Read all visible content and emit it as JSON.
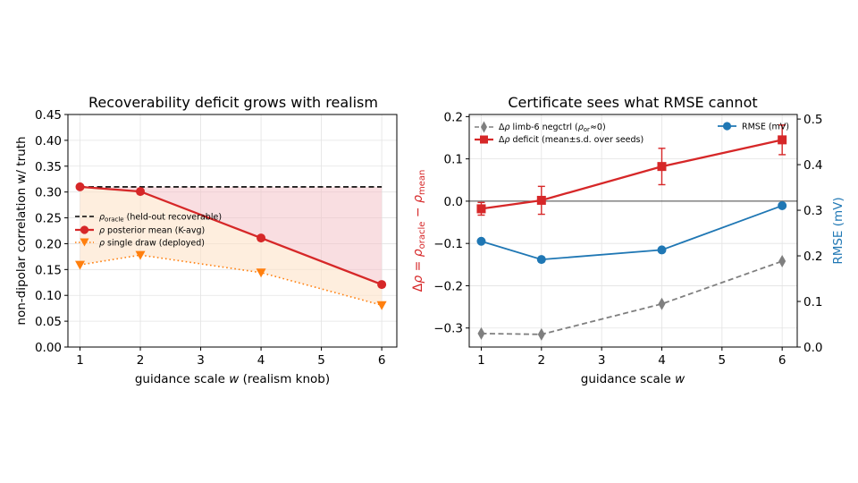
{
  "chart_data": [
    {
      "type": "line",
      "title": "Recoverability deficit grows with realism",
      "xlabel": "guidance scale w (realism knob)",
      "ylabel": "non-dipolar correlation w/ truth",
      "xlim": [
        0.8,
        6.25
      ],
      "ylim": [
        0.0,
        0.45
      ],
      "x_ticks": [
        1,
        2,
        3,
        4,
        5,
        6
      ],
      "y_ticks": [
        0.0,
        0.05,
        0.1,
        0.15,
        0.2,
        0.25,
        0.3,
        0.35,
        0.4,
        0.45
      ],
      "y_tick_labels": [
        "0.00",
        "0.05",
        "0.10",
        "0.15",
        "0.20",
        "0.25",
        "0.30",
        "0.35",
        "0.40",
        "0.45"
      ],
      "grid": true,
      "legend_position": "lower-left",
      "oracle_value": 0.31,
      "series": [
        {
          "name": "ρoracle (held-out recoverable)",
          "style": "dashed",
          "color": "#000000",
          "marker": "none",
          "x": [
            1,
            6
          ],
          "y": [
            0.31,
            0.31
          ]
        },
        {
          "name": "ρ posterior mean (K-avg)",
          "style": "solid",
          "color": "#d62728",
          "marker": "circle",
          "x": [
            1,
            2,
            4,
            6
          ],
          "y": [
            0.31,
            0.301,
            0.211,
            0.121
          ]
        },
        {
          "name": "ρ single draw (deployed)",
          "style": "dotted",
          "color": "#ff7f0e",
          "marker": "triangle-down",
          "x": [
            1,
            2,
            4,
            6
          ],
          "y": [
            0.159,
            0.178,
            0.144,
            0.081
          ]
        }
      ],
      "fills": [
        {
          "between": [
            "ρoracle (held-out recoverable)",
            "ρ posterior mean (K-avg)"
          ],
          "color": "#f4c2c8"
        },
        {
          "between": [
            "ρ posterior mean (K-avg)",
            "ρ single draw (deployed)"
          ],
          "color": "#fde2c8"
        }
      ]
    },
    {
      "type": "line",
      "title": "Certificate sees what RMSE cannot",
      "xlabel": "guidance scale w",
      "ylabel": "Δρ = ρoracle − ρmean",
      "ylabel_right": "RMSE (mV)",
      "xlim": [
        0.8,
        6.25
      ],
      "ylim": [
        -0.345,
        0.205
      ],
      "ylim_right": [
        0.0,
        0.51
      ],
      "x_ticks": [
        1,
        2,
        3,
        4,
        5,
        6
      ],
      "y_ticks": [
        0.2,
        0.1,
        0.0,
        -0.1,
        -0.2,
        -0.3
      ],
      "y_tick_labels": [
        "0.2",
        "0.1",
        "0.0",
        "−0.1",
        "−0.2",
        "−0.3"
      ],
      "y_ticks_right": [
        0.0,
        0.1,
        0.2,
        0.3,
        0.4,
        0.5
      ],
      "y_tick_labels_right": [
        "0.0",
        "0.1",
        "0.2",
        "0.3",
        "0.4",
        "0.5"
      ],
      "grid": true,
      "zero_line": true,
      "legend_position": "upper-left",
      "legend_right_position": "upper-right",
      "series": [
        {
          "name": "Δρ limb-6 negctrl (ρor≈0)",
          "axis": "left",
          "style": "dashed",
          "color": "#7f7f7f",
          "marker": "diamond",
          "x": [
            1,
            2,
            4,
            6
          ],
          "y": [
            -0.313,
            -0.315,
            -0.243,
            -0.142
          ]
        },
        {
          "name": "Δρ deficit (mean±s.d. over seeds)",
          "axis": "left",
          "style": "solid",
          "color": "#d62728",
          "marker": "square",
          "x": [
            1,
            2,
            4,
            6
          ],
          "y": [
            -0.018,
            0.002,
            0.082,
            0.145
          ],
          "err": [
            0.015,
            0.033,
            0.043,
            0.035
          ]
        },
        {
          "name": "RMSE (mV)",
          "axis": "right",
          "style": "solid",
          "color": "#1f77b4",
          "marker": "circle",
          "x": [
            1,
            2,
            4,
            6
          ],
          "y": [
            0.232,
            0.192,
            0.213,
            0.31
          ]
        }
      ]
    }
  ]
}
